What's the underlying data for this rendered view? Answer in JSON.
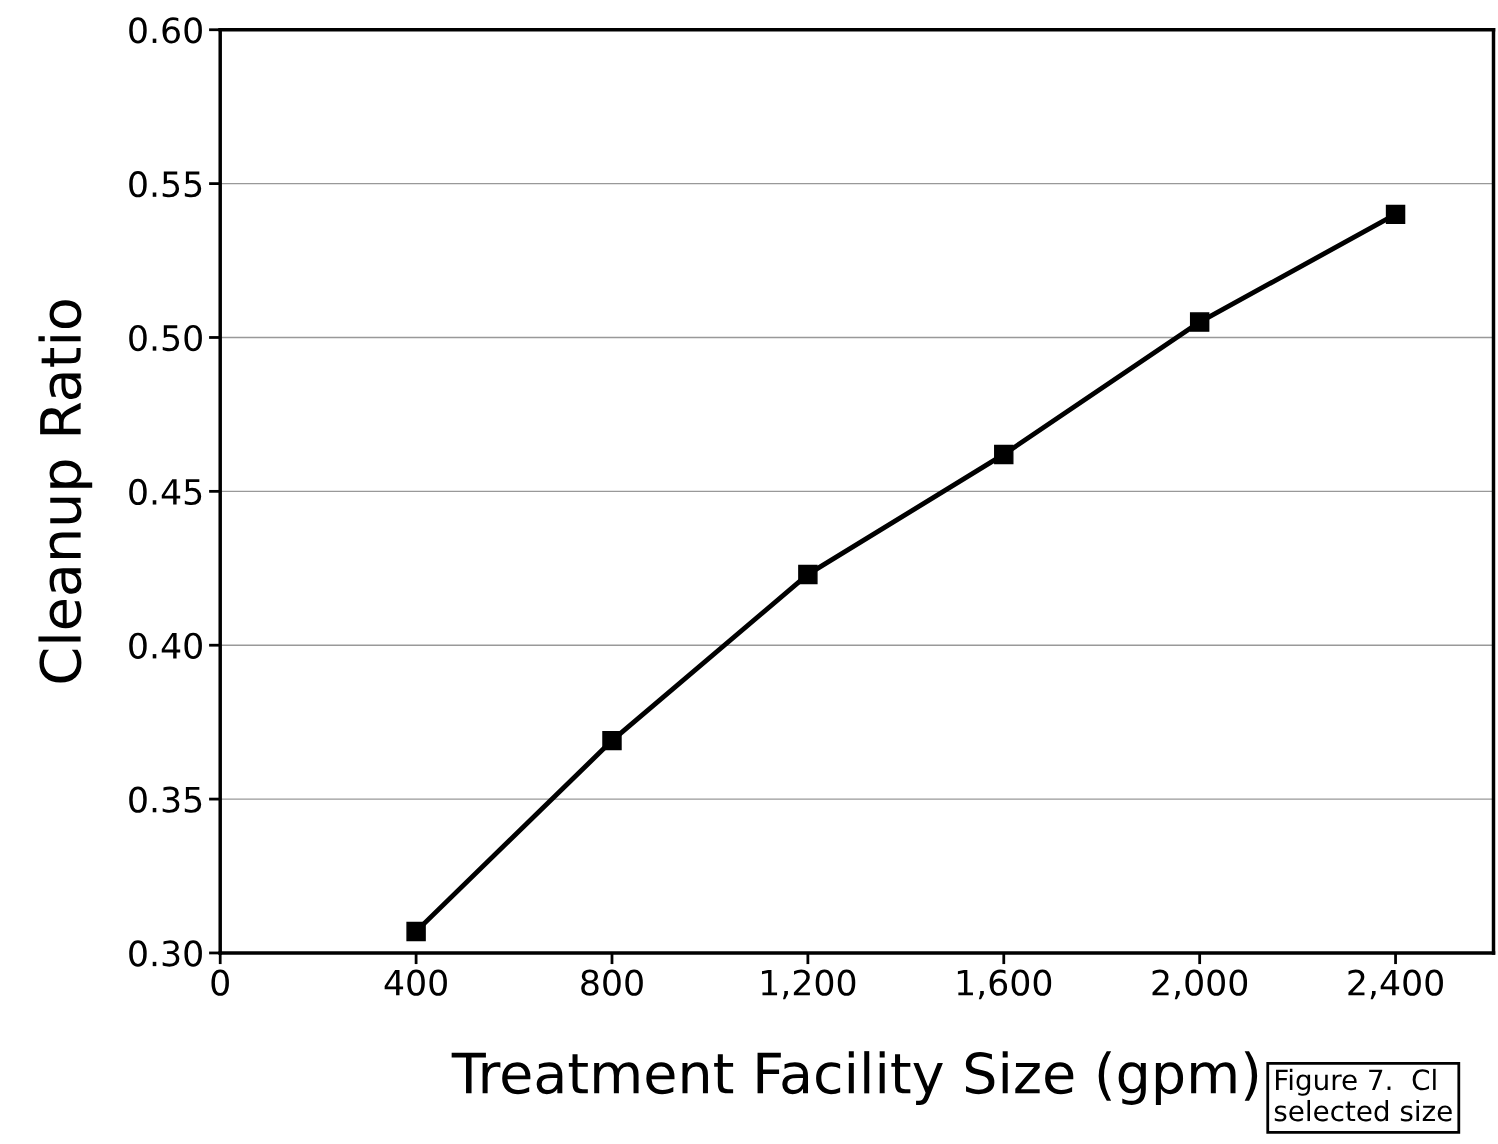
{
  "chart_data": {
    "type": "line",
    "xlabel": "Treatment Facility Size (gpm)",
    "ylabel": "Cleanup Ratio",
    "x": [
      400,
      800,
      1200,
      1600,
      2000,
      2400
    ],
    "series": [
      {
        "color": "#000000",
        "values": [
          0.307,
          0.369,
          0.423,
          0.462,
          0.505,
          0.54
        ]
      }
    ],
    "xlim": [
      0,
      2600
    ],
    "xticks": [
      0,
      400,
      800,
      {
        "value": 1200,
        "label": "1,200"
      },
      {
        "value": 1600,
        "label": "1,600"
      },
      {
        "value": 2000,
        "label": "2,000"
      },
      {
        "value": 2400,
        "label": "2,400"
      }
    ],
    "ylim": [
      0.3,
      0.6
    ],
    "yticks": [
      {
        "value": 0.3,
        "label": "0.30"
      },
      {
        "value": 0.35,
        "label": "0.35"
      },
      {
        "value": 0.4,
        "label": "0.40"
      },
      {
        "value": 0.45,
        "label": "0.45"
      },
      {
        "value": 0.5,
        "label": "0.50"
      },
      {
        "value": 0.55,
        "label": "0.55"
      },
      {
        "value": 0.6,
        "label": "0.60"
      }
    ],
    "grid": "y",
    "marker": "square",
    "line_style": "solid",
    "legend": false,
    "annotations": [
      "Figure 7.  Cl\nselected size"
    ]
  }
}
